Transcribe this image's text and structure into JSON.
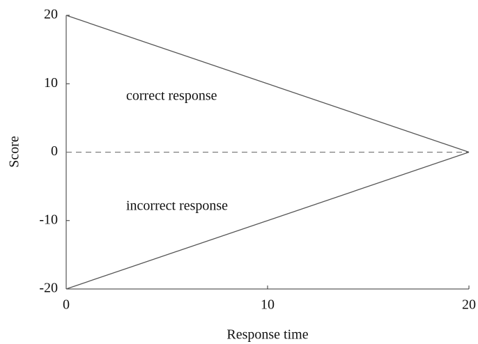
{
  "chart_data": {
    "type": "line",
    "x_label": "Response time",
    "y_label": "Score",
    "annotations": [
      "correct response",
      "incorrect response"
    ],
    "x": [
      0,
      20
    ],
    "series": [
      {
        "color": "#555555",
        "values": [
          20,
          0
        ]
      },
      {
        "color": "#555555",
        "values": [
          -20,
          0
        ]
      }
    ],
    "reference_line": 0,
    "xlim": [
      0,
      20
    ],
    "xticks": [
      0,
      10,
      20
    ],
    "ylim": [
      -20,
      20
    ],
    "yticks": [
      -20,
      -10,
      0,
      10,
      20
    ]
  }
}
